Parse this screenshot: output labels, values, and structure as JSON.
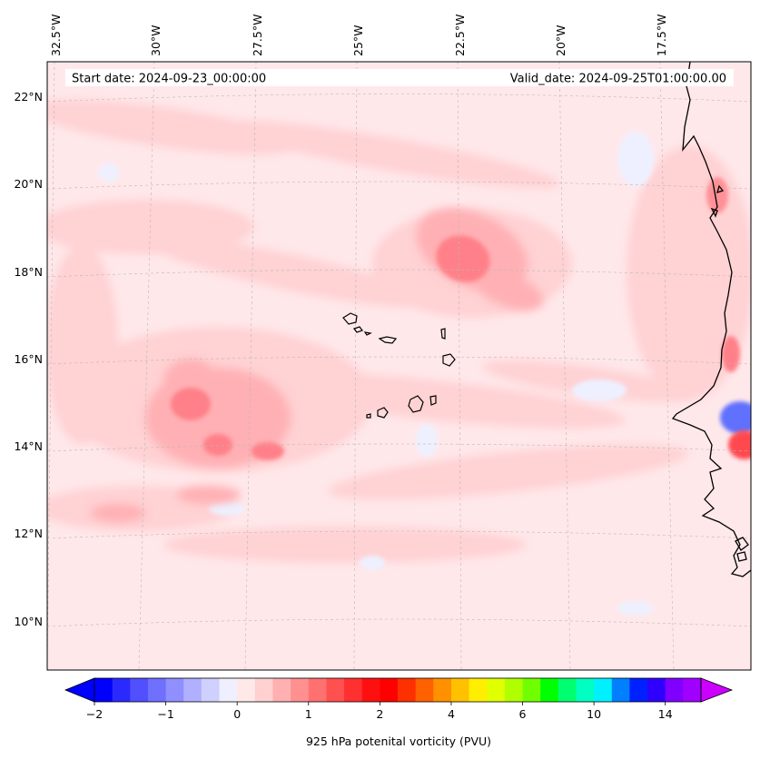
{
  "map": {
    "start_date_label": "Start date: 2024-09-23_00:00:00",
    "valid_date_label": "Valid_date: 2024-09-25T01:00:00.00",
    "lon_ticks": [
      "32.5°W",
      "30°W",
      "27.5°W",
      "25°W",
      "22.5°W",
      "20°W",
      "17.5°W"
    ],
    "lat_ticks": [
      "22°N",
      "20°N",
      "18°N",
      "16°N",
      "14°N",
      "12°N",
      "10°N"
    ],
    "field": "925 hPa potenital vorticity",
    "region": "Cape Verde Islands and West African coast"
  },
  "colorbar": {
    "label": "925 hPa potenital vorticity (PVU)",
    "ticks": [
      "−2",
      "−1",
      "0",
      "1",
      "2",
      "4",
      "6",
      "10",
      "14"
    ],
    "colors": [
      "#0000ff",
      "#2a2aff",
      "#5050ff",
      "#7070ff",
      "#8f8fff",
      "#b0b0ff",
      "#d0d0ff",
      "#efefff",
      "#ffe8e8",
      "#ffd0d0",
      "#ffb0b0",
      "#ff9090",
      "#ff7070",
      "#ff5050",
      "#ff3030",
      "#ff1010",
      "#ff0000",
      "#ff3000",
      "#ff6000",
      "#ff9000",
      "#ffc000",
      "#ffee00",
      "#e0ff00",
      "#b0ff00",
      "#70ff00",
      "#00ff00",
      "#00ff70",
      "#00ffc0",
      "#00f0ff",
      "#0080ff",
      "#0020ff",
      "#3000ff",
      "#8000ff",
      "#a000ff"
    ],
    "extend_low_color": "#0000ff",
    "extend_high_color": "#cc00ff"
  }
}
